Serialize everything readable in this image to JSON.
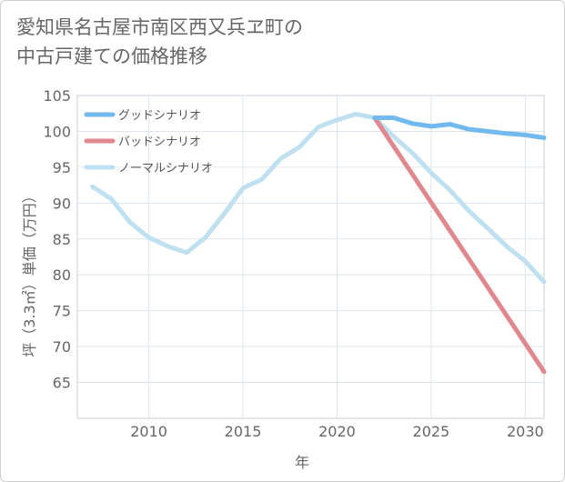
{
  "chart_data": {
    "type": "line",
    "title": "愛知県名古屋市南区西又兵ヱ町の\n中古戸建ての価格推移",
    "xlabel": "年",
    "ylabel": "坪（3.3㎡）単価（万円）",
    "xlim": [
      2006.2,
      2031
    ],
    "ylim": [
      60,
      105
    ],
    "x_ticks": [
      2010,
      2015,
      2020,
      2025,
      2030
    ],
    "y_ticks": [
      65,
      70,
      75,
      80,
      85,
      90,
      95,
      100,
      105
    ],
    "grid": true,
    "legend_position": "top-left",
    "series": [
      {
        "name": "グッドシナリオ",
        "color": "#72b9ee",
        "x": [
          2022,
          2023,
          2024,
          2025,
          2026,
          2027,
          2028,
          2029,
          2030,
          2031
        ],
        "y": [
          101.9,
          101.9,
          101.1,
          100.7,
          101.0,
          100.3,
          100.0,
          99.7,
          99.5,
          99.1
        ]
      },
      {
        "name": "バッドシナリオ",
        "color": "#e0888f",
        "x": [
          2022,
          2031
        ],
        "y": [
          101.9,
          66.5
        ]
      },
      {
        "name": "ノーマルシナリオ",
        "color": "#bfe0ee",
        "x": [
          2007,
          2008,
          2009,
          2010,
          2011,
          2012,
          2013,
          2014,
          2015,
          2016,
          2017,
          2018,
          2019,
          2020,
          2021,
          2022,
          2023,
          2024,
          2025,
          2026,
          2027,
          2028,
          2029,
          2030,
          2031
        ],
        "y": [
          92.3,
          90.6,
          87.3,
          85.2,
          84.0,
          83.1,
          85.2,
          88.5,
          92.1,
          93.3,
          96.2,
          97.8,
          100.6,
          101.6,
          102.4,
          101.9,
          99.3,
          97.0,
          94.2,
          91.8,
          88.9,
          86.5,
          84.0,
          81.9,
          79.0
        ]
      }
    ]
  }
}
